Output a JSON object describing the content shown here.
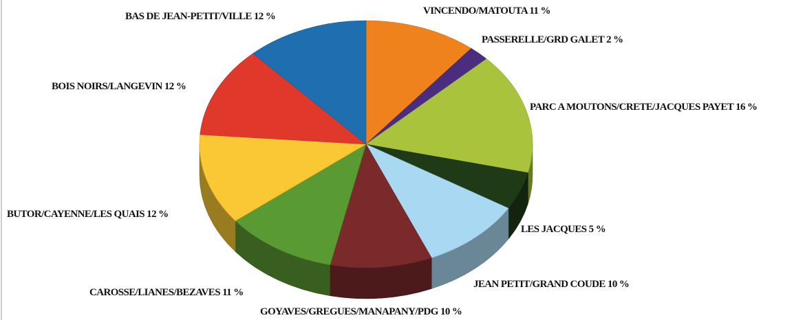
{
  "chart_data": {
    "type": "pie3d",
    "categories": [
      "VINCENDO/MATOUTA",
      "PASSERELLE/GRD GALET",
      "PARC A MOUTONS/CRETE/JACQUES PAYET",
      "LES JACQUES",
      "JEAN PETIT/GRAND COUDE",
      "GOYAVES/GREGUES/MANAPANY/PDG",
      "CAROSSE/LIANES/BEZAVES",
      "BUTOR/CAYENNE/LES QUAIS ",
      "BOIS NOIRS/LANGEVIN",
      "BAS DE JEAN-PETIT/VILLE"
    ],
    "values": [
      11,
      2,
      16,
      5,
      10,
      10,
      11,
      12,
      12,
      12
    ],
    "value_labels": [
      "11 %",
      "2 %",
      "16 %",
      "5 %",
      "10 %",
      "10 %",
      "11 %",
      "12 %",
      "12 %",
      "12 %"
    ],
    "colors": [
      "#f0821e",
      "#4b2d7f",
      "#a9c43c",
      "#1f3a16",
      "#a9d9f2",
      "#7a2a2a",
      "#5a9a32",
      "#f9c834",
      "#e0392b",
      "#1f6fb0"
    ]
  }
}
